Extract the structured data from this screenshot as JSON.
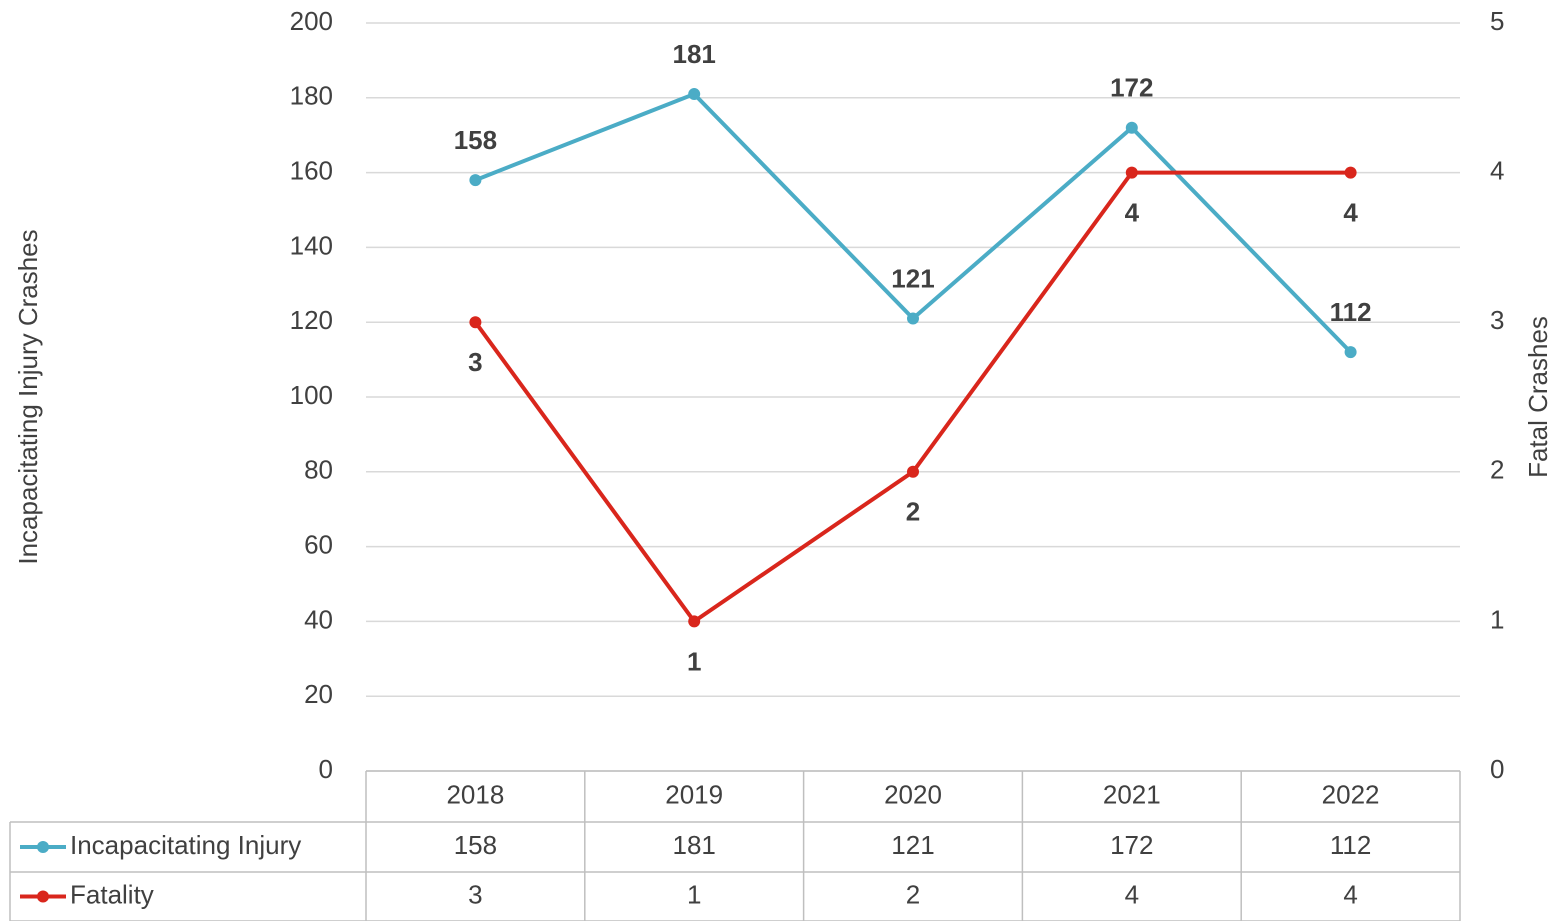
{
  "chart_data": {
    "type": "line",
    "categories": [
      "2018",
      "2019",
      "2020",
      "2021",
      "2022"
    ],
    "series": [
      {
        "name": "Incapacitating Injury",
        "color": "#4bacc6",
        "values": [
          158,
          181,
          121,
          172,
          112
        ]
      },
      {
        "name": "Fatality",
        "color": "#d9261c",
        "axis": "y2",
        "values": [
          3,
          1,
          2,
          4,
          4
        ]
      }
    ],
    "ylabel": "Incapacitating Injury Crashes",
    "y2label": "Fatal Crashes",
    "ylim": [
      0,
      200
    ],
    "yticks": [
      0,
      20,
      40,
      60,
      80,
      100,
      120,
      140,
      160,
      180,
      200
    ],
    "y2lim": [
      0,
      5
    ],
    "y2ticks": [
      0,
      1,
      2,
      3,
      4,
      5
    ],
    "grid": true,
    "data_table": true
  }
}
